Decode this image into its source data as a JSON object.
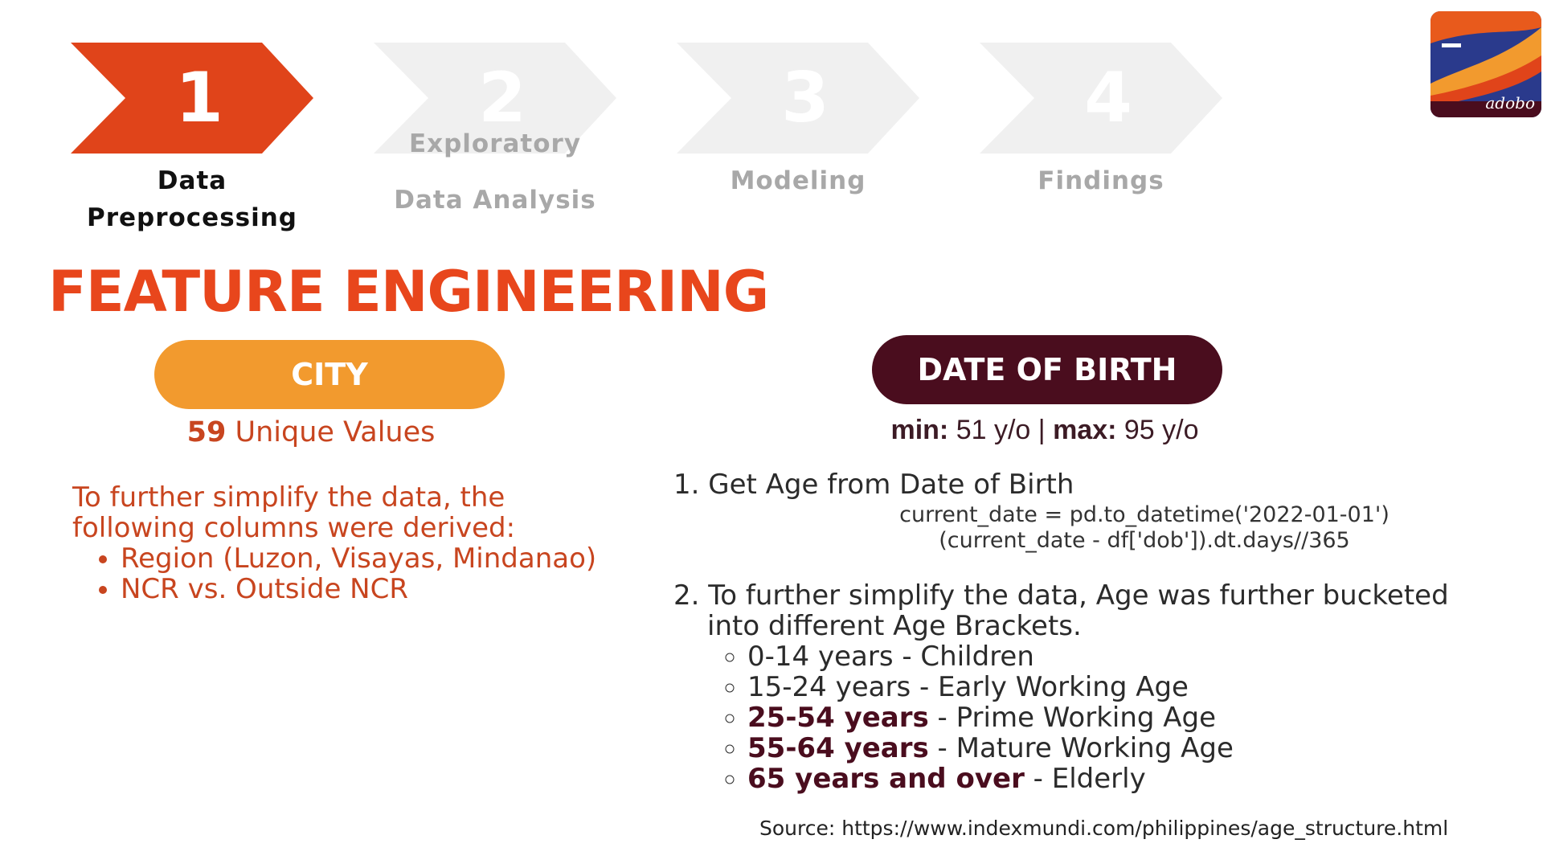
{
  "steps": [
    {
      "number": "1",
      "label_line1": "",
      "label_line2": "Data Preprocessing",
      "active": true
    },
    {
      "number": "2",
      "label_line1": "Exploratory",
      "label_line2": "Data Analysis",
      "active": false
    },
    {
      "number": "3",
      "label_line1": "",
      "label_line2": "Modeling",
      "active": false
    },
    {
      "number": "4",
      "label_line1": "",
      "label_line2": "Findings",
      "active": false
    }
  ],
  "colors": {
    "active_step": "#e0441a",
    "inactive_step": "#f0f0f0",
    "title": "#e8461c",
    "city_pill": "#f29a2e",
    "dob_pill": "#4a0d1e"
  },
  "logo": {
    "text": "adobo",
    "icon": "adobo-logo-icon"
  },
  "title": "FEATURE ENGINEERING",
  "city": {
    "pill_label": "CITY",
    "unique_count": "59",
    "unique_label": " Unique Values",
    "desc_line1": "To further simplify the data, the",
    "desc_line2": "following columns were derived:",
    "bullets": [
      "Region (Luzon, Visayas, Mindanao)",
      "NCR vs. Outside NCR"
    ]
  },
  "dob": {
    "pill_label": "DATE OF BIRTH",
    "min_label": "min:",
    "min_value": " 51 y/o | ",
    "max_label": "max:",
    "max_value": " 95 y/o",
    "step1": "1. Get Age from Date of Birth",
    "code_line1": "current_date = pd.to_datetime('2022-01-01')",
    "code_line2": "(current_date - df['dob']).dt.days//365",
    "step2_line1": "2. To further simplify the data, Age was further bucketed",
    "step2_line2": "into different Age Brackets.",
    "brackets": [
      {
        "range": "0-14 years",
        "desc": " - Children",
        "bold": false
      },
      {
        "range": "15-24 years",
        "desc": " - Early Working Age",
        "bold": false
      },
      {
        "range": "25-54 years",
        "desc": " - Prime Working Age",
        "bold": true
      },
      {
        "range": "55-64 years",
        "desc": " - Mature Working Age",
        "bold": true
      },
      {
        "range": "65 years and over",
        "desc": " - Elderly",
        "bold": true
      }
    ]
  },
  "source": "Source: https://www.indexmundi.com/philippines/age_structure.html"
}
